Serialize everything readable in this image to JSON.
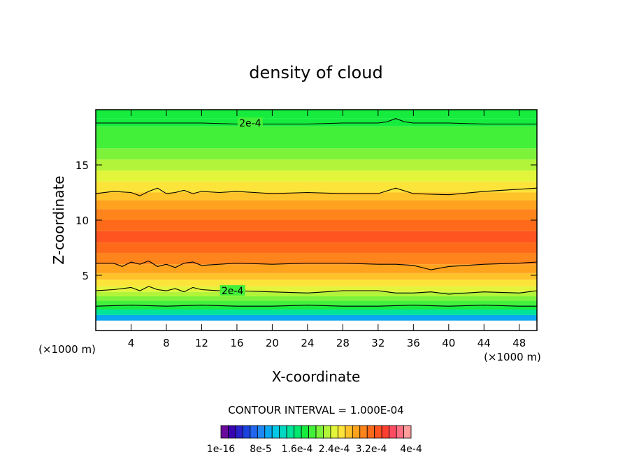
{
  "chart_data": {
    "type": "heatmap",
    "title": "density of cloud",
    "xlabel": "X-coordinate",
    "ylabel": "Z-coordinate",
    "x_unit_left": "(×1000 m)",
    "x_unit_right": "(×1000 m)",
    "xlim": [
      0,
      50
    ],
    "ylim": [
      0,
      20
    ],
    "x_ticks": [
      4,
      8,
      12,
      16,
      20,
      24,
      28,
      32,
      36,
      40,
      44,
      48
    ],
    "x_tick_labels": [
      "4",
      "8",
      "12",
      "16",
      "20",
      "24",
      "28",
      "32",
      "36",
      "40",
      "44",
      "48"
    ],
    "y_ticks": [
      5,
      10,
      15
    ],
    "y_tick_labels": [
      "5",
      "10",
      "15"
    ],
    "contour_interval_text": "CONTOUR INTERVAL = 1.000E-04",
    "colorbar_labels": [
      "1e-16",
      "8e-5",
      "1.6e-4",
      "2.4e-4",
      "3.2e-4",
      "4e-4"
    ],
    "contour_labels": [
      {
        "text": "2e-4",
        "x": 17.5,
        "z": 18.8
      },
      {
        "text": "2e-4",
        "x": 15.5,
        "z": 3.6
      }
    ],
    "colors": {
      "ramp": [
        "#6a0a9a",
        "#3a05b0",
        "#2a22c8",
        "#1a44dd",
        "#2266ee",
        "#1e88f4",
        "#0aa8f0",
        "#00c8e6",
        "#00d8c2",
        "#00e39a",
        "#00e86e",
        "#16ec3e",
        "#42f03a",
        "#7cf23a",
        "#b2f43a",
        "#e2f53a",
        "#fde43a",
        "#ffc22a",
        "#ffa21e",
        "#ff841c",
        "#ff6a1a",
        "#ff5420",
        "#ff4030",
        "#ff4c62",
        "#ff7084",
        "#ff9c9c"
      ]
    },
    "profile_z": [
      0.9,
      1.4,
      1.9,
      2.3,
      2.7,
      3.1,
      3.5,
      4.0,
      4.6,
      5.2,
      6.0,
      7.0,
      8.0,
      9.0,
      10.0,
      11.0,
      11.8,
      12.5,
      13.5,
      14.5,
      15.5,
      16.5,
      17.5,
      18.5,
      19.2,
      20.0
    ],
    "profile_levels": [
      4,
      6,
      9,
      11,
      12,
      13,
      14,
      15,
      16,
      17,
      18,
      19,
      20,
      21,
      20,
      19,
      18,
      17,
      16,
      15,
      14,
      13,
      12,
      12,
      11,
      11
    ],
    "contours": [
      {
        "x": [
          0,
          4,
          8,
          12,
          16,
          20,
          24,
          28,
          32,
          33,
          34,
          35,
          36,
          40,
          44,
          48,
          50
        ],
        "z": [
          18.8,
          18.8,
          18.8,
          18.8,
          18.7,
          18.7,
          18.7,
          18.8,
          18.8,
          18.9,
          19.2,
          18.9,
          18.8,
          18.8,
          18.7,
          18.7,
          18.7
        ]
      },
      {
        "x": [
          0,
          2,
          4,
          5,
          6,
          7,
          8,
          9,
          10,
          11,
          12,
          14,
          16,
          20,
          24,
          28,
          32,
          34,
          36,
          40,
          44,
          48,
          50
        ],
        "z": [
          12.4,
          12.6,
          12.5,
          12.2,
          12.6,
          12.9,
          12.4,
          12.5,
          12.7,
          12.4,
          12.6,
          12.5,
          12.6,
          12.4,
          12.5,
          12.4,
          12.4,
          12.9,
          12.4,
          12.3,
          12.6,
          12.8,
          12.9
        ]
      },
      {
        "x": [
          0,
          2,
          3,
          4,
          5,
          6,
          7,
          8,
          9,
          10,
          11,
          12,
          14,
          16,
          20,
          24,
          28,
          32,
          34,
          36,
          38,
          40,
          44,
          48,
          50
        ],
        "z": [
          6.1,
          6.1,
          5.8,
          6.2,
          6.0,
          6.3,
          5.8,
          6.0,
          5.7,
          6.1,
          6.2,
          5.9,
          6.0,
          6.1,
          6.0,
          6.1,
          6.1,
          6.0,
          6.0,
          5.9,
          5.5,
          5.8,
          6.0,
          6.1,
          6.2
        ]
      },
      {
        "x": [
          0,
          2,
          4,
          5,
          6,
          7,
          8,
          9,
          10,
          11,
          12,
          14,
          16,
          20,
          24,
          28,
          32,
          34,
          36,
          38,
          40,
          44,
          48,
          50
        ],
        "z": [
          3.6,
          3.7,
          3.9,
          3.6,
          4.0,
          3.7,
          3.6,
          3.8,
          3.5,
          3.9,
          3.7,
          3.6,
          3.6,
          3.5,
          3.4,
          3.6,
          3.6,
          3.4,
          3.4,
          3.5,
          3.3,
          3.5,
          3.4,
          3.6
        ]
      },
      {
        "x": [
          0,
          4,
          8,
          12,
          16,
          20,
          24,
          28,
          32,
          36,
          40,
          44,
          48,
          50
        ],
        "z": [
          2.2,
          2.3,
          2.2,
          2.3,
          2.2,
          2.2,
          2.3,
          2.2,
          2.2,
          2.3,
          2.2,
          2.3,
          2.2,
          2.2
        ]
      }
    ],
    "grid": false,
    "legend": "bottom colorbar"
  }
}
